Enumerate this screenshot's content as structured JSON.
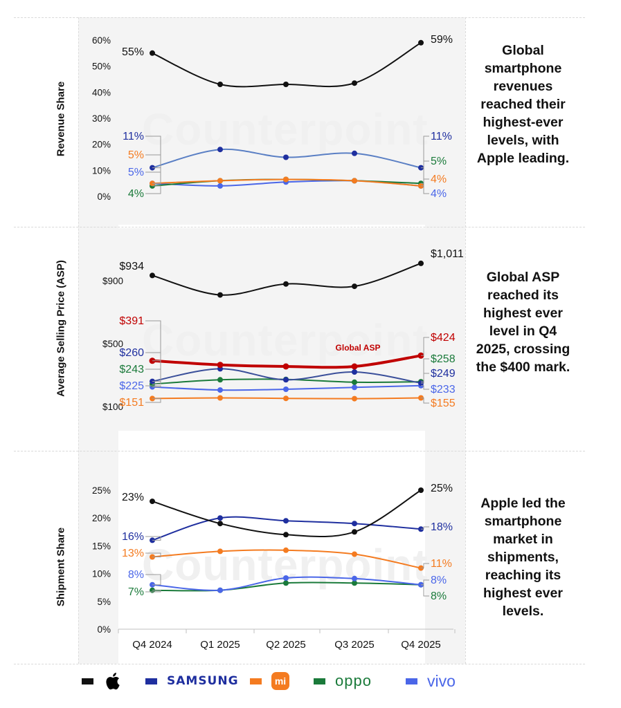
{
  "notes": {
    "revenue": "Global smartphone revenues reached their highest-ever levels, with Apple leading.",
    "asp": "Global ASP reached its highest ever level in Q4 2025, crossing the $400 mark.",
    "shipment": "Apple led the smartphone market in shipments, reaching its highest ever levels."
  },
  "watermark": "Counterpoint",
  "legend": [
    {
      "brand": "Apple",
      "icon": "apple-logo-icon",
      "color": "#111111"
    },
    {
      "brand": "SAMSUNG",
      "color": "#1f2f9f"
    },
    {
      "brand": "mi",
      "icon": "xiaomi-logo-icon",
      "color": "#f47b20"
    },
    {
      "brand": "oppo",
      "color": "#1a7a3a"
    },
    {
      "brand": "vivo",
      "color": "#4a66e8"
    }
  ],
  "chart_data": [
    {
      "type": "line",
      "ylabel": "Revenue Share",
      "x": [
        "Q4 2024",
        "Q1 2025",
        "Q2 2025",
        "Q3 2025",
        "Q4 2025"
      ],
      "ylim": [
        0,
        60
      ],
      "yticks": [
        "0%",
        "10%",
        "20%",
        "30%",
        "40%",
        "50%",
        "60%"
      ],
      "series": [
        {
          "name": "Apple",
          "color": "#111111",
          "values": [
            55,
            43,
            43,
            43.5,
            59
          ],
          "start_label": "55%",
          "end_label": "59%"
        },
        {
          "name": "Samsung",
          "color": "#1f2f9f",
          "line_color": "#5a7fc4",
          "values": [
            11,
            18,
            15,
            16.5,
            11
          ],
          "start_label": "11%",
          "end_label": "11%"
        },
        {
          "name": "Xiaomi",
          "color": "#f47b20",
          "values": [
            5,
            6,
            6.5,
            6,
            4
          ],
          "start_label": "5%",
          "end_label": "4%"
        },
        {
          "name": "OPPO",
          "color": "#1a7a3a",
          "values": [
            4,
            6,
            6.5,
            6,
            5
          ],
          "start_label": "4%",
          "end_label": "5%"
        },
        {
          "name": "vivo",
          "color": "#4a66e8",
          "values": [
            5,
            4,
            5.5,
            6,
            4
          ],
          "start_label": "5%",
          "end_label": "4%"
        }
      ]
    },
    {
      "type": "line",
      "ylabel": "Average Selling Price (ASP)",
      "x": [
        "Q4 2024",
        "Q1 2025",
        "Q2 2025",
        "Q3 2025",
        "Q4 2025"
      ],
      "ylim": [
        100,
        1050
      ],
      "yticks": [
        "$100",
        "$500",
        "$900"
      ],
      "annotation": "Global ASP",
      "series": [
        {
          "name": "Apple",
          "color": "#111111",
          "values": [
            934,
            810,
            880,
            865,
            1011
          ],
          "start_label": "$934",
          "end_label": "$1,011"
        },
        {
          "name": "Global ASP",
          "color": "#c00000",
          "values": [
            391,
            365,
            355,
            355,
            424
          ],
          "start_label": "$391",
          "end_label": "$424"
        },
        {
          "name": "Samsung",
          "color": "#1f2f9f",
          "line_color": "#3a4f9a",
          "values": [
            260,
            340,
            270,
            320,
            249
          ],
          "start_label": "$260",
          "end_label": "$249"
        },
        {
          "name": "OPPO",
          "color": "#1a7a3a",
          "values": [
            243,
            270,
            273,
            255,
            258
          ],
          "start_label": "$243",
          "end_label": "$258"
        },
        {
          "name": "vivo",
          "color": "#4a66e8",
          "values": [
            225,
            205,
            210,
            222,
            233
          ],
          "start_label": "$225",
          "end_label": "$233"
        },
        {
          "name": "Xiaomi",
          "color": "#f47b20",
          "values": [
            151,
            155,
            152,
            150,
            155
          ],
          "start_label": "$151",
          "end_label": "$155"
        }
      ]
    },
    {
      "type": "line",
      "ylabel": "Shipment Share",
      "x": [
        "Q4 2024",
        "Q1 2025",
        "Q2 2025",
        "Q3 2025",
        "Q4 2025"
      ],
      "ylim": [
        0,
        25
      ],
      "yticks": [
        "0%",
        "5%",
        "10%",
        "15%",
        "20%",
        "25%"
      ],
      "series": [
        {
          "name": "Apple",
          "color": "#111111",
          "values": [
            23,
            19,
            17,
            17.5,
            25
          ],
          "start_label": "23%",
          "end_label": "25%"
        },
        {
          "name": "Samsung",
          "color": "#1f2f9f",
          "values": [
            16,
            20,
            19.5,
            19,
            18
          ],
          "start_label": "16%",
          "end_label": "18%"
        },
        {
          "name": "Xiaomi",
          "color": "#f47b20",
          "values": [
            13,
            14,
            14.2,
            13.5,
            11
          ],
          "start_label": "13%",
          "end_label": "11%"
        },
        {
          "name": "vivo",
          "color": "#4a66e8",
          "values": [
            8,
            7,
            9.2,
            9.1,
            8
          ],
          "start_label": "8%",
          "end_label": "8%"
        },
        {
          "name": "OPPO",
          "color": "#1a7a3a",
          "values": [
            7,
            7,
            8.3,
            8.3,
            8
          ],
          "start_label": "7%",
          "end_label": "8%"
        }
      ]
    }
  ]
}
